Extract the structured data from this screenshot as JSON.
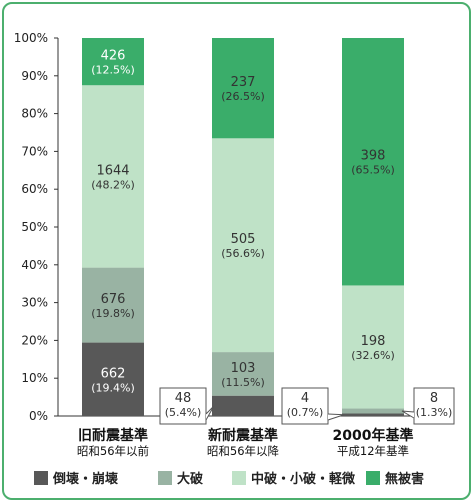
{
  "chart_data": {
    "type": "bar",
    "stacked": true,
    "normalized": true,
    "categories": [
      {
        "label": "旧耐震基準",
        "sublabel": "昭和56年以前"
      },
      {
        "label": "新耐震基準",
        "sublabel": "昭和56年以降"
      },
      {
        "label": "2000年基準",
        "sublabel": "平成12年基準"
      }
    ],
    "series": [
      {
        "name": "倒壊・崩壊",
        "color": "#585858",
        "values": [
          662,
          48,
          4
        ],
        "percent": [
          "19.4%",
          "5.4%",
          "0.7%"
        ]
      },
      {
        "name": "大破",
        "color": "#99b3a3",
        "values": [
          676,
          103,
          8
        ],
        "percent": [
          "19.8%",
          "11.5%",
          "1.3%"
        ]
      },
      {
        "name": "中破・小破・軽微",
        "color": "#bfe2c7",
        "values": [
          1644,
          505,
          198
        ],
        "percent": [
          "48.2%",
          "56.6%",
          "32.6%"
        ]
      },
      {
        "name": "無被害",
        "color": "#3aad6a",
        "values": [
          426,
          237,
          398
        ],
        "percent": [
          "12.5%",
          "26.5%",
          "65.5%"
        ]
      }
    ],
    "yticks": [
      "0%",
      "10%",
      "20%",
      "30%",
      "40%",
      "50%",
      "60%",
      "70%",
      "80%",
      "90%",
      "100%"
    ],
    "ylim": [
      0,
      100
    ],
    "grid": false,
    "legend": "bottom"
  }
}
